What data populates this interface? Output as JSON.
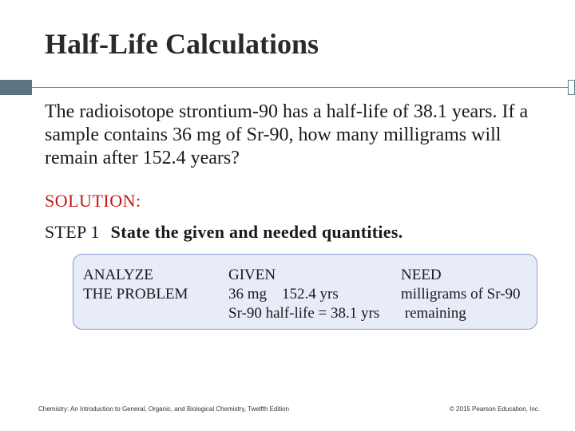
{
  "slide": {
    "title": "Half-Life Calculations",
    "question": "The radioisotope strontium-90 has a half-life of 38.1 years. If a sample contains 36 mg of Sr-90, how many milligrams will remain after 152.4 years?",
    "solution_label": "SOLUTION:",
    "step": {
      "label": "STEP 1",
      "text": "State the given and needed quantities."
    },
    "analyze_box": {
      "analyze": [
        "ANALYZE",
        "THE PROBLEM"
      ],
      "given_header": "GIVEN",
      "given_line1": "36 mg    152.4 yrs",
      "given_line2": "Sr-90 half-life = 38.1 yrs",
      "need_header": "NEED",
      "need_line1": "milligrams of Sr-90",
      "need_line2": " remaining"
    },
    "footer": {
      "left": "Chemistry: An Introduction to General, Organic, and Biological Chemistry, Twelfth Edition",
      "right": "© 2015 Pearson Education, Inc."
    }
  },
  "colors": {
    "solution": "#c21818",
    "box_fill": "#e8ecf8",
    "box_border": "#8a9ad0",
    "accent_bar": "#5b7584"
  }
}
